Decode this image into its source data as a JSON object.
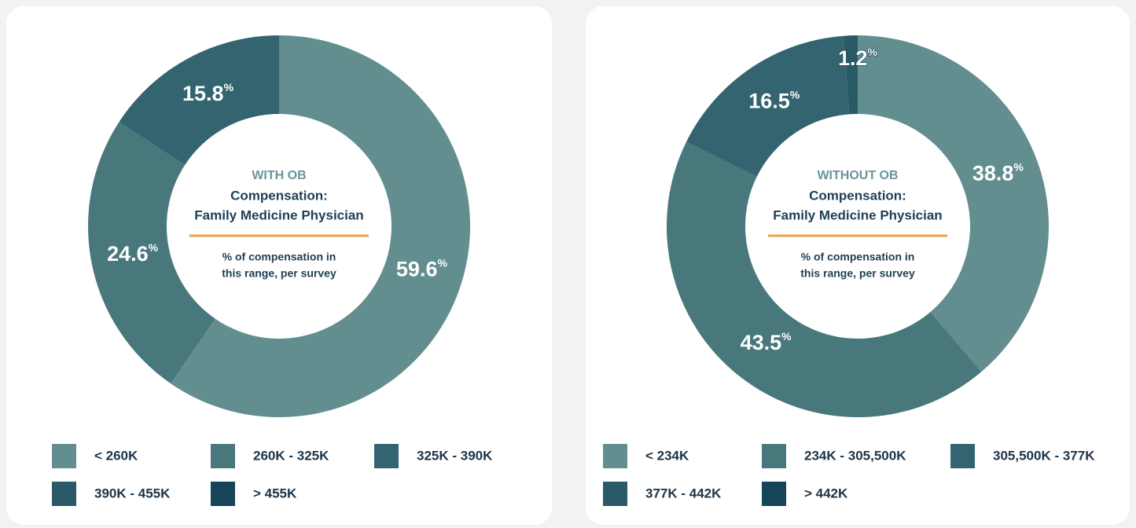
{
  "chart_data": [
    {
      "type": "pie",
      "subtitle": "WITH OB",
      "title": [
        "Compensation:",
        "Family Medicine Physician"
      ],
      "note": [
        "% of compensation in",
        "this range, per survey"
      ],
      "unit": "%",
      "categories": [
        "< 260K",
        "260K - 325K",
        "325K - 390K",
        "390K - 455K",
        "> 455K"
      ],
      "values": [
        59.6,
        24.6,
        15.8,
        0,
        0
      ],
      "colors": [
        "#628e90",
        "#48777c",
        "#33646f",
        "#2a5a67",
        "#16455a"
      ]
    },
    {
      "type": "pie",
      "subtitle": "WITHOUT OB",
      "title": [
        "Compensation:",
        "Family Medicine Physician"
      ],
      "note": [
        "% of compensation in",
        "this range, per survey"
      ],
      "unit": "%",
      "categories": [
        "< 234K",
        "234K - 305,500K",
        "305,500K - 377K",
        "377K - 442K",
        "> 442K"
      ],
      "values": [
        38.8,
        43.5,
        16.5,
        1.2,
        0
      ],
      "colors": [
        "#628e90",
        "#48777c",
        "#33646f",
        "#2a5a67",
        "#16455a"
      ]
    }
  ]
}
